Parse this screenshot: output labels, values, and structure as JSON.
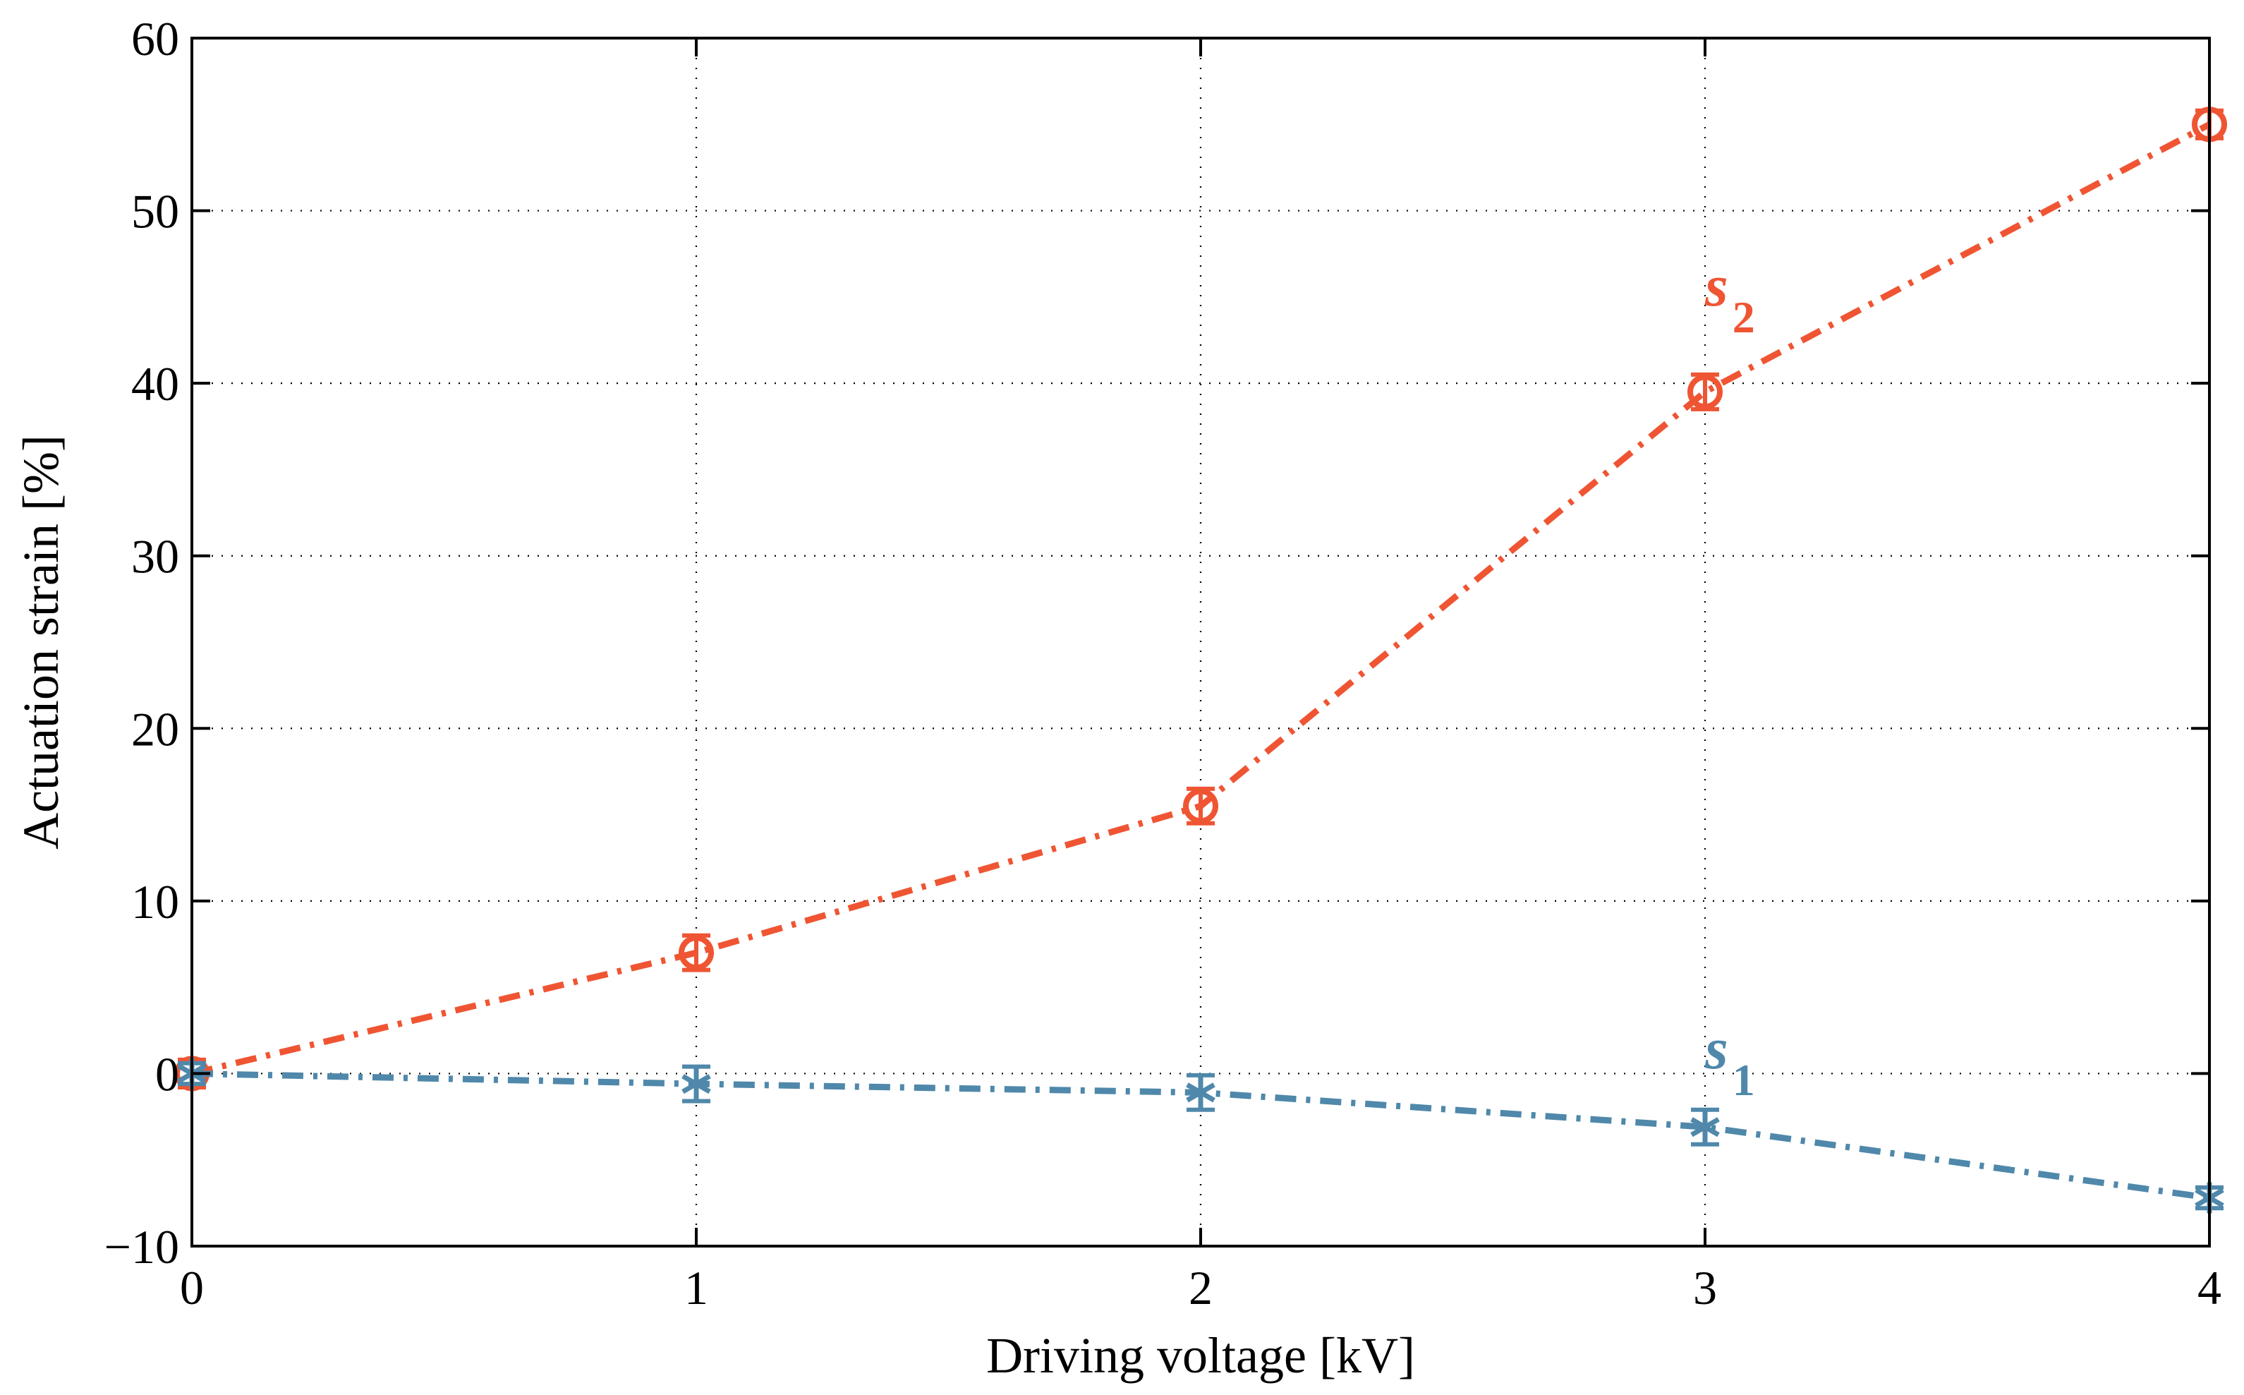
{
  "chart_data": {
    "type": "line",
    "title": "",
    "xlabel": "Driving voltage [kV]",
    "ylabel": "Actuation strain [%]",
    "xlim": [
      0,
      4
    ],
    "ylim": [
      -10,
      60
    ],
    "xticks": [
      0,
      1,
      2,
      3,
      4
    ],
    "xtick_labels": [
      "0",
      "1",
      "2",
      "3",
      "4"
    ],
    "yticks": [
      -10,
      0,
      10,
      20,
      30,
      40,
      50,
      60
    ],
    "ytick_labels": [
      "−10",
      "0",
      "10",
      "20",
      "30",
      "40",
      "50",
      "60"
    ],
    "grid": true,
    "legend": "none",
    "series": [
      {
        "name": "s2",
        "label_main": "s",
        "label_sub": "2",
        "color": "#ef5533",
        "marker": "circle",
        "line_style": "dash-dot",
        "x": [
          0,
          1,
          2,
          3,
          4
        ],
        "values": [
          0,
          7,
          15.5,
          39.5,
          55
        ],
        "error": [
          0.8,
          1.0,
          1.0,
          1.0,
          0.8
        ],
        "label_anchor": {
          "x": 3,
          "y": 44.5
        }
      },
      {
        "name": "s1",
        "label_main": "s",
        "label_sub": "1",
        "color": "#4f88aa",
        "marker": "asterisk",
        "line_style": "dash-dot",
        "x": [
          0,
          1,
          2,
          3,
          4
        ],
        "values": [
          0,
          -0.6,
          -1.1,
          -3.1,
          -7.2
        ],
        "error": [
          0.6,
          1.0,
          1.0,
          1.0,
          0.6
        ],
        "label_anchor": {
          "x": 3,
          "y": 0.3
        }
      }
    ]
  }
}
